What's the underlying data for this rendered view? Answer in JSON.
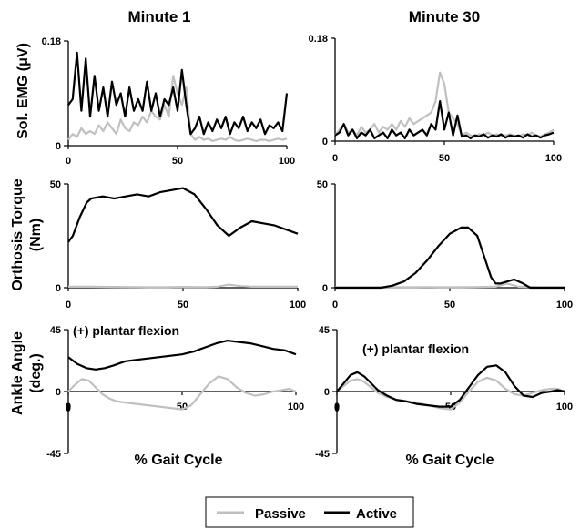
{
  "colors": {
    "passive": "#c0c0c0",
    "active": "#000000",
    "axis": "#000000"
  },
  "column_titles": [
    "Minute 1",
    "Minute 30"
  ],
  "row_labels": [
    {
      "line1": "Sol. EMG (μV)",
      "line2": ""
    },
    {
      "line1": "Orthosis Torque",
      "line2": "(Nm)"
    },
    {
      "line1": "Ankle Angle",
      "line2": "(deg.)"
    }
  ],
  "x_axis_title": "% Gait Cycle",
  "legend": {
    "passive": "Passive",
    "active": "Active"
  },
  "chart_data": [
    {
      "type": "line",
      "panel": "emg-minute-1",
      "xlim": [
        0,
        100
      ],
      "ylim": [
        0,
        0.18
      ],
      "x_ticks": [
        "0",
        "50",
        "100"
      ],
      "y_ticks": [
        "0",
        "0.18"
      ],
      "series": [
        {
          "name": "Passive",
          "x": [
            0,
            2,
            4,
            6,
            8,
            10,
            12,
            14,
            16,
            18,
            20,
            22,
            24,
            26,
            28,
            30,
            32,
            34,
            36,
            38,
            40,
            42,
            44,
            46,
            48,
            50,
            52,
            54,
            56,
            58,
            60,
            62,
            64,
            66,
            68,
            70,
            72,
            74,
            76,
            78,
            80,
            82,
            84,
            86,
            88,
            90,
            92,
            94,
            96,
            98,
            100
          ],
          "values": [
            0.01,
            0.02,
            0.015,
            0.03,
            0.02,
            0.025,
            0.02,
            0.035,
            0.025,
            0.04,
            0.03,
            0.02,
            0.045,
            0.03,
            0.025,
            0.04,
            0.035,
            0.05,
            0.04,
            0.06,
            0.05,
            0.045,
            0.07,
            0.05,
            0.12,
            0.09,
            0.07,
            0.1,
            0.02,
            0.01,
            0.015,
            0.01,
            0.012,
            0.008,
            0.01,
            0.012,
            0.01,
            0.015,
            0.01,
            0.008,
            0.01,
            0.012,
            0.01,
            0.008,
            0.01,
            0.01,
            0.008,
            0.01,
            0.012,
            0.01,
            0.012
          ]
        },
        {
          "name": "Active",
          "x": [
            0,
            2,
            4,
            6,
            8,
            10,
            12,
            14,
            16,
            18,
            20,
            22,
            24,
            26,
            28,
            30,
            32,
            34,
            36,
            38,
            40,
            42,
            44,
            46,
            48,
            50,
            52,
            54,
            56,
            58,
            60,
            62,
            64,
            66,
            68,
            70,
            72,
            74,
            76,
            78,
            80,
            82,
            84,
            86,
            88,
            90,
            92,
            94,
            96,
            98,
            100
          ],
          "values": [
            0.07,
            0.08,
            0.16,
            0.06,
            0.15,
            0.05,
            0.12,
            0.06,
            0.1,
            0.05,
            0.11,
            0.07,
            0.09,
            0.05,
            0.1,
            0.06,
            0.08,
            0.06,
            0.11,
            0.06,
            0.09,
            0.05,
            0.08,
            0.07,
            0.1,
            0.06,
            0.13,
            0.07,
            0.02,
            0.03,
            0.05,
            0.02,
            0.04,
            0.025,
            0.045,
            0.03,
            0.05,
            0.02,
            0.04,
            0.03,
            0.05,
            0.025,
            0.04,
            0.03,
            0.045,
            0.02,
            0.035,
            0.03,
            0.04,
            0.025,
            0.09
          ]
        }
      ]
    },
    {
      "type": "line",
      "panel": "emg-minute-30",
      "xlim": [
        0,
        100
      ],
      "ylim": [
        0,
        0.18
      ],
      "x_ticks": [
        "0",
        "50",
        "100"
      ],
      "y_ticks": [
        "0",
        "0.18"
      ],
      "series": [
        {
          "name": "Passive",
          "x": [
            0,
            2,
            4,
            6,
            8,
            10,
            12,
            14,
            16,
            18,
            20,
            22,
            24,
            26,
            28,
            30,
            32,
            34,
            36,
            38,
            40,
            42,
            44,
            46,
            48,
            50,
            52,
            54,
            56,
            58,
            60,
            62,
            64,
            66,
            68,
            70,
            72,
            74,
            76,
            78,
            80,
            82,
            84,
            86,
            88,
            90,
            92,
            94,
            96,
            98,
            100
          ],
          "values": [
            0.01,
            0.02,
            0.03,
            0.015,
            0.02,
            0.01,
            0.025,
            0.015,
            0.02,
            0.03,
            0.015,
            0.025,
            0.02,
            0.03,
            0.02,
            0.035,
            0.025,
            0.04,
            0.03,
            0.035,
            0.04,
            0.045,
            0.05,
            0.07,
            0.12,
            0.1,
            0.05,
            0.04,
            0.03,
            0.01,
            0.015,
            0.01,
            0.008,
            0.012,
            0.01,
            0.015,
            0.01,
            0.012,
            0.008,
            0.01,
            0.012,
            0.01,
            0.008,
            0.012,
            0.01,
            0.015,
            0.01,
            0.008,
            0.012,
            0.015,
            0.02
          ]
        },
        {
          "name": "Active",
          "x": [
            0,
            2,
            4,
            6,
            8,
            10,
            12,
            14,
            16,
            18,
            20,
            22,
            24,
            26,
            28,
            30,
            32,
            34,
            36,
            38,
            40,
            42,
            44,
            46,
            48,
            50,
            52,
            54,
            56,
            58,
            60,
            62,
            64,
            66,
            68,
            70,
            72,
            74,
            76,
            78,
            80,
            82,
            84,
            86,
            88,
            90,
            92,
            94,
            96,
            98,
            100
          ],
          "values": [
            0.01,
            0.015,
            0.03,
            0.01,
            0.02,
            0.005,
            0.015,
            0.01,
            0.02,
            0.005,
            0.01,
            0.015,
            0.005,
            0.02,
            0.01,
            0.015,
            0.005,
            0.02,
            0.01,
            0.015,
            0.02,
            0.01,
            0.03,
            0.02,
            0.07,
            0.02,
            0.05,
            0.01,
            0.045,
            0.008,
            0.01,
            0.005,
            0.01,
            0.008,
            0.012,
            0.006,
            0.01,
            0.008,
            0.012,
            0.006,
            0.01,
            0.008,
            0.01,
            0.006,
            0.012,
            0.008,
            0.01,
            0.006,
            0.01,
            0.012,
            0.015
          ]
        }
      ]
    },
    {
      "type": "line",
      "panel": "torque-minute-1",
      "xlim": [
        0,
        100
      ],
      "ylim": [
        0,
        50
      ],
      "x_ticks": [
        "0",
        "50",
        "100"
      ],
      "y_ticks": [
        "0",
        "50"
      ],
      "series": [
        {
          "name": "Passive",
          "x": [
            0,
            10,
            20,
            30,
            40,
            50,
            60,
            65,
            70,
            75,
            80,
            90,
            100
          ],
          "values": [
            0.5,
            0.5,
            0.4,
            0.3,
            0.2,
            0.4,
            0.3,
            0.5,
            1.5,
            0.8,
            0.5,
            0.5,
            0.5
          ]
        },
        {
          "name": "Active",
          "x": [
            0,
            2,
            5,
            8,
            10,
            15,
            20,
            25,
            30,
            35,
            40,
            45,
            50,
            55,
            60,
            65,
            70,
            75,
            80,
            85,
            90,
            95,
            100
          ],
          "values": [
            22,
            25,
            34,
            41,
            43,
            44,
            43,
            44,
            45,
            44,
            46,
            47,
            48,
            45,
            38,
            30,
            25,
            29,
            32,
            31,
            30,
            28,
            26
          ]
        }
      ]
    },
    {
      "type": "line",
      "panel": "torque-minute-30",
      "xlim": [
        0,
        100
      ],
      "ylim": [
        0,
        50
      ],
      "x_ticks": [
        "0",
        "50",
        "100"
      ],
      "y_ticks": [
        "0",
        "50"
      ],
      "series": [
        {
          "name": "Passive",
          "x": [
            0,
            10,
            20,
            30,
            40,
            50,
            60,
            70,
            75,
            80,
            90,
            100
          ],
          "values": [
            0.2,
            0.2,
            0.3,
            0.2,
            0.3,
            0.2,
            0.3,
            0.5,
            2,
            0.5,
            0.3,
            0.3
          ]
        },
        {
          "name": "Active",
          "x": [
            0,
            20,
            25,
            30,
            35,
            40,
            45,
            50,
            55,
            58,
            62,
            65,
            68,
            70,
            72,
            75,
            78,
            82,
            85,
            90,
            100
          ],
          "values": [
            0,
            0,
            1,
            3,
            7,
            13,
            20,
            26,
            29,
            29,
            25,
            15,
            5,
            2,
            2,
            3,
            4,
            2,
            0,
            0,
            0
          ]
        }
      ]
    },
    {
      "type": "line",
      "panel": "angle-minute-1",
      "xlim": [
        0,
        100
      ],
      "ylim": [
        -45,
        45
      ],
      "x_ticks": [
        "0",
        "50",
        "100"
      ],
      "y_ticks": [
        "45",
        "0",
        "-45"
      ],
      "annotation": "(+) plantar flexion",
      "series": [
        {
          "name": "Passive",
          "x": [
            0,
            3,
            6,
            9,
            12,
            15,
            18,
            21,
            25,
            30,
            35,
            40,
            45,
            50,
            54,
            58,
            62,
            66,
            70,
            74,
            78,
            82,
            86,
            90,
            94,
            97,
            100
          ],
          "values": [
            0,
            5,
            9,
            8,
            3,
            -2,
            -5,
            -7,
            -8,
            -9,
            -10,
            -11,
            -12,
            -13,
            -10,
            -2,
            6,
            11,
            9,
            3,
            -1,
            -3,
            -2,
            0,
            1,
            2,
            0
          ]
        },
        {
          "name": "Active",
          "x": [
            0,
            4,
            8,
            12,
            16,
            20,
            25,
            30,
            35,
            40,
            45,
            50,
            55,
            60,
            65,
            70,
            75,
            80,
            85,
            90,
            95,
            100
          ],
          "values": [
            25,
            20,
            17,
            16,
            17,
            19,
            22,
            23,
            24,
            25,
            26,
            27,
            29,
            32,
            35,
            37,
            36,
            35,
            33,
            31,
            30,
            27
          ]
        }
      ]
    },
    {
      "type": "line",
      "panel": "angle-minute-30",
      "xlim": [
        0,
        100
      ],
      "ylim": [
        -45,
        45
      ],
      "x_ticks": [
        "0",
        "50",
        "100"
      ],
      "y_ticks": [
        "45",
        "0",
        "-45"
      ],
      "annotation": "(+) plantar flexion",
      "series": [
        {
          "name": "Passive",
          "x": [
            0,
            3,
            6,
            9,
            12,
            15,
            18,
            22,
            26,
            30,
            35,
            40,
            45,
            50,
            54,
            58,
            62,
            66,
            70,
            74,
            78,
            82,
            86,
            90,
            94,
            97,
            100
          ],
          "values": [
            0,
            4,
            8,
            9,
            7,
            3,
            -1,
            -4,
            -6,
            -7,
            -8,
            -10,
            -12,
            -13,
            -8,
            0,
            7,
            10,
            8,
            2,
            -2,
            -3,
            -1,
            1,
            2,
            2,
            0
          ]
        },
        {
          "name": "Active",
          "x": [
            0,
            3,
            6,
            9,
            12,
            15,
            18,
            22,
            26,
            30,
            35,
            40,
            45,
            50,
            54,
            58,
            62,
            66,
            70,
            74,
            78,
            82,
            86,
            90,
            94,
            97,
            100
          ],
          "values": [
            0,
            6,
            12,
            14,
            11,
            6,
            1,
            -3,
            -6,
            -7,
            -9,
            -10,
            -11,
            -11,
            -6,
            3,
            12,
            18,
            19,
            14,
            4,
            -3,
            -4,
            -1,
            0,
            1,
            0
          ]
        }
      ]
    }
  ]
}
